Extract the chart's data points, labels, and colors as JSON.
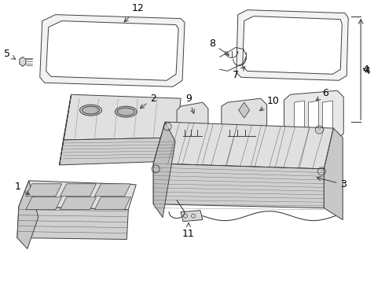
{
  "background_color": "#ffffff",
  "line_color": "#404040",
  "text_color": "#000000",
  "fig_width": 4.9,
  "fig_height": 3.6,
  "dpi": 100
}
